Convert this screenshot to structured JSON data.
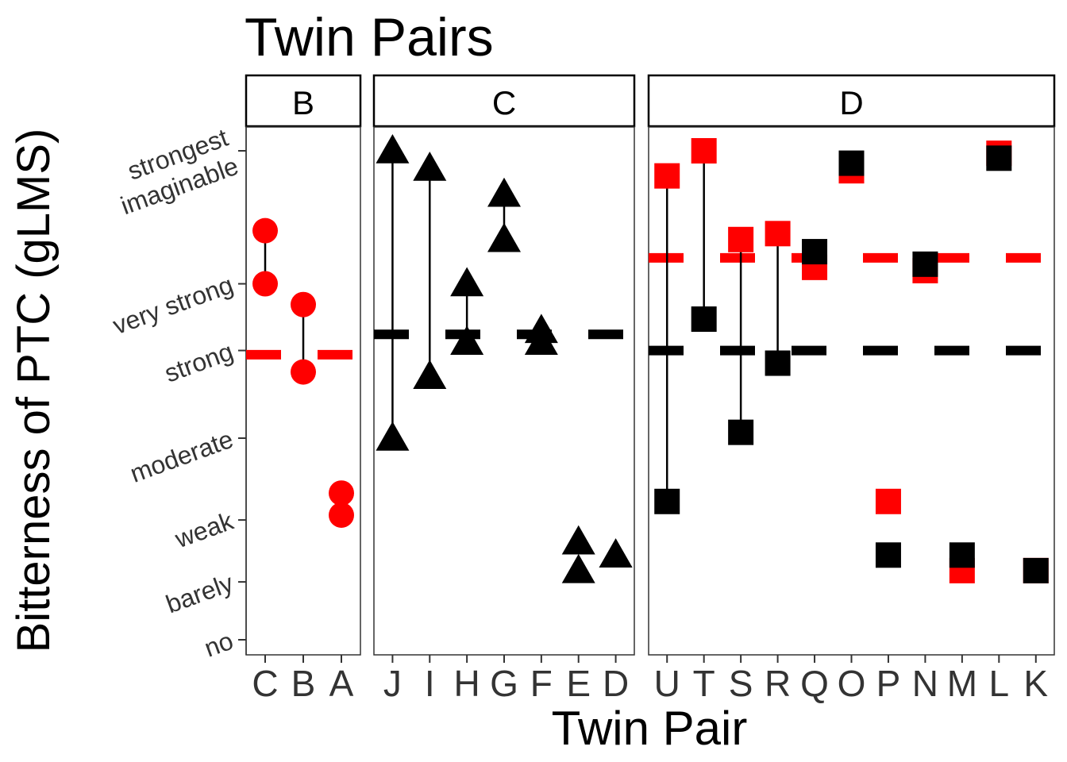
{
  "chart_data": {
    "type": "scatter",
    "title": "Twin Pairs",
    "xlabel": "Twin Pair",
    "ylabel": "Bitterness of PTC (gLMS)",
    "grid": false,
    "legend": "none",
    "y_scale": "sqrt",
    "ylim": [
      0,
      100
    ],
    "y_ticks": [
      {
        "value": 0,
        "label": "no"
      },
      {
        "value": 1.4,
        "label": "barely"
      },
      {
        "value": 6,
        "label": "weak"
      },
      {
        "value": 17,
        "label": "moderate"
      },
      {
        "value": 35,
        "label": "strong"
      },
      {
        "value": 53,
        "label": "very strong"
      },
      {
        "value": 100,
        "label": "strongest\nimaginable"
      }
    ],
    "colors": {
      "red": "#ff0000",
      "black": "#000000"
    },
    "panels": [
      {
        "name": "B",
        "marker": "circle",
        "categories": [
          "C",
          "B",
          "A"
        ],
        "ref_lines": [
          {
            "color": "red",
            "value": 34
          }
        ],
        "pairs": [
          {
            "x": "C",
            "red": [
              70,
              53
            ],
            "black": [],
            "segment": [
              53,
              70
            ]
          },
          {
            "x": "B",
            "red": [
              47,
              30
            ],
            "black": [],
            "segment": [
              30,
              47
            ]
          },
          {
            "x": "A",
            "red": [
              9,
              6.5
            ],
            "black": [],
            "segment": null
          }
        ]
      },
      {
        "name": "C",
        "marker": "triangle",
        "categories": [
          "J",
          "I",
          "H",
          "G",
          "F",
          "E",
          "D"
        ],
        "ref_lines": [
          {
            "color": "black",
            "value": 39
          }
        ],
        "pairs": [
          {
            "x": "J",
            "red": [],
            "black": [
              100,
              17
            ],
            "segment": [
              17,
              100
            ]
          },
          {
            "x": "I",
            "red": [],
            "black": [
              93,
              29
            ],
            "segment": [
              29,
              93
            ]
          },
          {
            "x": "H",
            "red": [],
            "black": [
              53,
              37
            ],
            "segment": [
              37,
              53
            ]
          },
          {
            "x": "G",
            "red": [],
            "black": [
              83,
              67
            ],
            "segment": [
              67,
              83
            ]
          },
          {
            "x": "F",
            "red": [],
            "black": [
              40,
              37
            ],
            "segment": null
          },
          {
            "x": "E",
            "red": [],
            "black": [
              4,
              2
            ],
            "segment": null
          },
          {
            "x": "D",
            "red": [],
            "black": [
              3,
              3
            ],
            "segment": null
          }
        ]
      },
      {
        "name": "D",
        "marker": "square",
        "categories": [
          "U",
          "T",
          "S",
          "R",
          "Q",
          "O",
          "P",
          "N",
          "M",
          "L",
          "K"
        ],
        "ref_lines": [
          {
            "color": "red",
            "value": 61
          },
          {
            "color": "black",
            "value": 35
          }
        ],
        "pairs": [
          {
            "x": "U",
            "red": [
              90
            ],
            "black": [
              8
            ],
            "segment": [
              8,
              90
            ]
          },
          {
            "x": "T",
            "red": [
              100
            ],
            "black": [
              43
            ],
            "segment": [
              43,
              100
            ]
          },
          {
            "x": "S",
            "red": [
              67
            ],
            "black": [
              18
            ],
            "segment": [
              18,
              67
            ]
          },
          {
            "x": "R",
            "red": [
              69
            ],
            "black": [
              32
            ],
            "segment": [
              32,
              69
            ]
          },
          {
            "x": "Q",
            "red": [
              58
            ],
            "black": [
              63
            ],
            "segment": null
          },
          {
            "x": "O",
            "red": [
              92
            ],
            "black": [
              95
            ],
            "segment": null
          },
          {
            "x": "P",
            "red": [
              8
            ],
            "black": [
              3
            ],
            "segment": null
          },
          {
            "x": "N",
            "red": [
              57
            ],
            "black": [
              59
            ],
            "segment": null
          },
          {
            "x": "M",
            "red": [
              2
            ],
            "black": [
              3
            ],
            "segment": null
          },
          {
            "x": "L",
            "red": [
              99
            ],
            "black": [
              97
            ],
            "segment": null
          },
          {
            "x": "K",
            "red": [
              2
            ],
            "black": [
              2
            ],
            "segment": null
          }
        ]
      }
    ]
  }
}
